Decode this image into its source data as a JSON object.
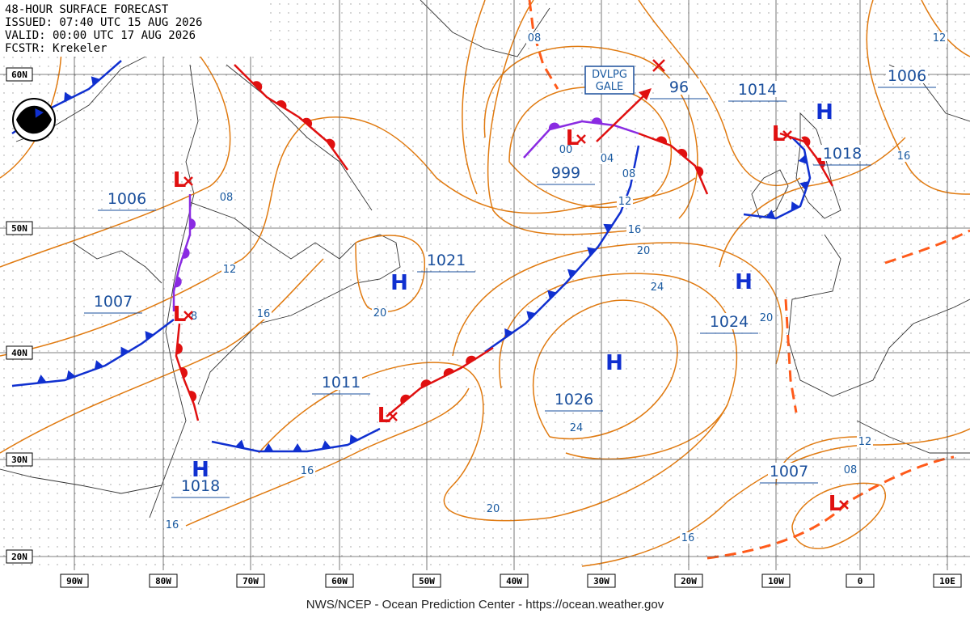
{
  "header": {
    "title": "48-HOUR SURFACE FORECAST",
    "issued": "ISSUED: 07:40 UTC 15 AUG 2026",
    "valid": "VALID:  00:00 UTC 17 AUG 2026",
    "forecaster": "FCSTR:  Krekeler"
  },
  "lat_labels": [
    "60N",
    "50N",
    "40N",
    "30N",
    "20N"
  ],
  "lon_labels": [
    "90W",
    "80W",
    "70W",
    "60W",
    "50W",
    "40W",
    "30W",
    "20W",
    "10W",
    "0",
    "10E"
  ],
  "pressure_labels": [
    "1006",
    "1007",
    "1011",
    "1018",
    "1021",
    "999",
    "96",
    "1014",
    "1006",
    "1018",
    "1024",
    "1026",
    "1007"
  ],
  "centers": [
    "L",
    "L",
    "L",
    "L",
    "L",
    "L",
    "H",
    "H",
    "H",
    "H",
    "H"
  ],
  "isobar_labels": [
    "08",
    "12",
    "08",
    "12",
    "16",
    "8",
    "20",
    "16",
    "16",
    "20",
    "24",
    "24",
    "20",
    "16",
    "12",
    "08",
    "04",
    "00",
    "20",
    "16",
    "12",
    "08",
    "16"
  ],
  "warning": [
    "DVLPG",
    "GALE"
  ],
  "footer": "NWS/NCEP - Ocean Prediction Center - https://ocean.weather.gov"
}
